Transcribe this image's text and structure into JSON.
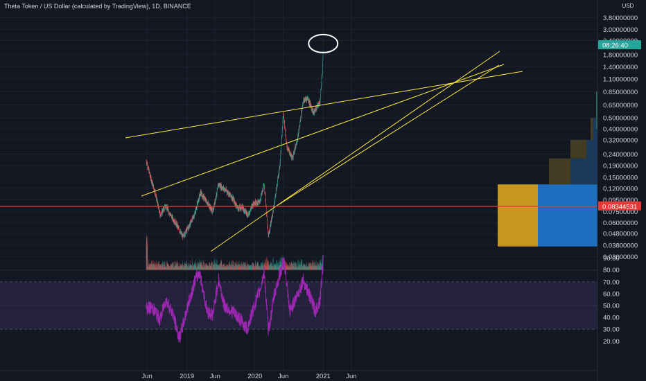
{
  "header": {
    "title": "Theta Token / US Dollar (calculated by TradingView), 1D, BINANCE"
  },
  "price_axis": {
    "currency": "USD",
    "ticks": [
      "3.80000000",
      "3.00000000",
      "2.40000000",
      "1.80000000",
      "1.40000000",
      "1.10000000",
      "0.85000000",
      "0.65000000",
      "0.50000000",
      "0.40000000",
      "0.32000000",
      "0.24000000",
      "0.19000000",
      "0.15000000",
      "0.12000000",
      "0.09500000",
      "0.07500000",
      "0.06000000",
      "0.04800000",
      "0.03800000",
      "0.03000000"
    ],
    "countdown_tag": "08:26:40",
    "price_tag": "0.08344531"
  },
  "rsi_axis": {
    "ticks": [
      "90.00",
      "80.00",
      "70.00",
      "60.00",
      "50.00",
      "40.00",
      "30.00",
      "20.00"
    ]
  },
  "time_axis": {
    "ticks": [
      "Jun",
      "2019",
      "Jun",
      "2020",
      "Jun",
      "2021",
      "Jun"
    ]
  },
  "colors": {
    "background": "#131722",
    "up_candle": "#26a69a",
    "down_candle": "#ef5350",
    "trendline": "#ffeb3b",
    "horizontal_line": "#e53935",
    "rsi_line": "#9c27b0",
    "rsi_band": "#7e57c2",
    "circle": "#ffffff",
    "countdown_tag": "#26a69a",
    "price_tag": "#e53935",
    "volume_profile_gold": "#c8951f",
    "volume_profile_blue": "#1e6fbf"
  },
  "chart_data": [
    {
      "type": "candlestick",
      "title": "Theta Token / US Dollar (calculated by TradingView), 1D, BINANCE",
      "scale": "log",
      "x_ticks": [
        "Jun",
        "2019",
        "Jun",
        "2020",
        "Jun",
        "2021",
        "Jun"
      ],
      "y_ticks": [
        3.8,
        3.0,
        2.4,
        1.8,
        1.4,
        1.1,
        0.85,
        0.65,
        0.5,
        0.4,
        0.32,
        0.24,
        0.19,
        0.15,
        0.12,
        0.095,
        0.075,
        0.06,
        0.048,
        0.038,
        0.03
      ],
      "last_price": 0.08344531,
      "countdown": "08:26:40",
      "anchors": [
        {
          "date": "2018-05-28",
          "price": 0.21
        },
        {
          "date": "2018-06-20",
          "price": 0.15
        },
        {
          "date": "2018-07-15",
          "price": 0.11
        },
        {
          "date": "2018-08-10",
          "price": 0.07
        },
        {
          "date": "2018-09-10",
          "price": 0.085
        },
        {
          "date": "2018-10-05",
          "price": 0.07
        },
        {
          "date": "2018-11-01",
          "price": 0.06
        },
        {
          "date": "2018-12-10",
          "price": 0.045
        },
        {
          "date": "2019-01-10",
          "price": 0.055
        },
        {
          "date": "2019-02-10",
          "price": 0.07
        },
        {
          "date": "2019-03-15",
          "price": 0.11
        },
        {
          "date": "2019-04-20",
          "price": 0.09
        },
        {
          "date": "2019-05-20",
          "price": 0.075
        },
        {
          "date": "2019-06-20",
          "price": 0.13
        },
        {
          "date": "2019-07-30",
          "price": 0.115
        },
        {
          "date": "2019-09-01",
          "price": 0.1
        },
        {
          "date": "2019-10-01",
          "price": 0.08
        },
        {
          "date": "2019-10-25",
          "price": 0.082
        },
        {
          "date": "2019-11-25",
          "price": 0.07
        },
        {
          "date": "2019-12-25",
          "price": 0.09
        },
        {
          "date": "2020-01-25",
          "price": 0.09
        },
        {
          "date": "2020-02-20",
          "price": 0.13
        },
        {
          "date": "2020-03-13",
          "price": 0.045
        },
        {
          "date": "2020-04-10",
          "price": 0.08
        },
        {
          "date": "2020-05-15",
          "price": 0.2
        },
        {
          "date": "2020-06-01",
          "price": 0.55
        },
        {
          "date": "2020-06-20",
          "price": 0.28
        },
        {
          "date": "2020-07-20",
          "price": 0.22
        },
        {
          "date": "2020-08-20",
          "price": 0.35
        },
        {
          "date": "2020-09-15",
          "price": 0.7
        },
        {
          "date": "2020-10-10",
          "price": 0.75
        },
        {
          "date": "2020-11-10",
          "price": 0.55
        },
        {
          "date": "2020-12-15",
          "price": 0.7
        },
        {
          "date": "2020-12-28",
          "price": 1.3
        },
        {
          "date": "2021-01-02",
          "price": 2.25
        }
      ]
    },
    {
      "type": "line",
      "name": "RSI",
      "y_ticks": [
        90,
        80,
        70,
        60,
        50,
        40,
        30,
        20
      ],
      "band": [
        30,
        70
      ],
      "anchors": [
        {
          "date": "2018-05-28",
          "value": 48
        },
        {
          "date": "2018-07-01",
          "value": 48
        },
        {
          "date": "2018-08-10",
          "value": 38
        },
        {
          "date": "2018-09-10",
          "value": 55
        },
        {
          "date": "2018-10-15",
          "value": 44
        },
        {
          "date": "2018-11-22",
          "value": 22
        },
        {
          "date": "2019-01-15",
          "value": 55
        },
        {
          "date": "2019-02-15",
          "value": 72
        },
        {
          "date": "2019-03-10",
          "value": 78
        },
        {
          "date": "2019-04-20",
          "value": 45
        },
        {
          "date": "2019-05-20",
          "value": 42
        },
        {
          "date": "2019-06-20",
          "value": 72
        },
        {
          "date": "2019-07-20",
          "value": 50
        },
        {
          "date": "2019-09-01",
          "value": 45
        },
        {
          "date": "2019-10-15",
          "value": 38
        },
        {
          "date": "2019-11-20",
          "value": 30
        },
        {
          "date": "2019-12-25",
          "value": 48
        },
        {
          "date": "2020-01-25",
          "value": 62
        },
        {
          "date": "2020-02-20",
          "value": 78
        },
        {
          "date": "2020-03-13",
          "value": 28
        },
        {
          "date": "2020-04-15",
          "value": 60
        },
        {
          "date": "2020-05-20",
          "value": 80
        },
        {
          "date": "2020-06-05",
          "value": 88
        },
        {
          "date": "2020-07-05",
          "value": 45
        },
        {
          "date": "2020-08-25",
          "value": 62
        },
        {
          "date": "2020-09-15",
          "value": 72
        },
        {
          "date": "2020-10-20",
          "value": 58
        },
        {
          "date": "2020-11-20",
          "value": 45
        },
        {
          "date": "2020-12-15",
          "value": 55
        },
        {
          "date": "2021-01-02",
          "value": 90
        }
      ]
    }
  ]
}
